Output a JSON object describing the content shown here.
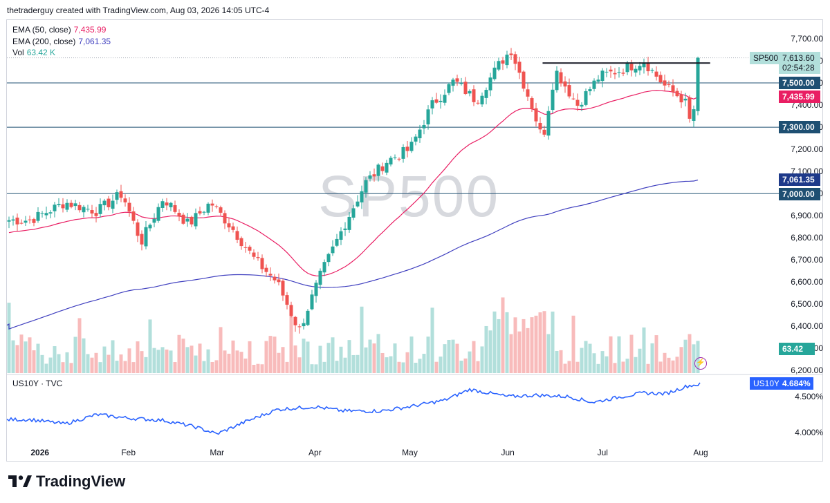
{
  "header": {
    "credit": "thetraderguy created with TradingView.com, Aug 03, 2026 14:05 UTC-4"
  },
  "main_pane": {
    "symbol": "SP500",
    "last_price": "7,613.60",
    "countdown": "02:54:28",
    "legend": [
      {
        "label": "EMA (50, close)",
        "value": "7,435.99",
        "color": "#e91e63"
      },
      {
        "label": "EMA (200, close)",
        "value": "7,061.35",
        "color": "#3f3fbf"
      },
      {
        "label": "Vol",
        "value": "63.42 K",
        "color": "#26a69a"
      }
    ],
    "price_axis_labels": [
      "7,700.00",
      "7,600.00",
      "7,500.00",
      "7,400.00",
      "7,300.00",
      "7,200.00",
      "7,100.00",
      "7,000.00",
      "6,900.00",
      "6,800.00",
      "6,700.00",
      "6,600.00",
      "6,500.00",
      "6,400.00",
      "6,300.00",
      "6,200.00"
    ],
    "horizontal_levels": [
      {
        "value": "7,500.00",
        "color": "#1e4f72"
      },
      {
        "value": "7,300.00",
        "color": "#1e4f72"
      },
      {
        "value": "7,000.00",
        "color": "#1e4f72"
      }
    ],
    "ema50_tag": "7,435.99",
    "ema200_tag": "7,061.35",
    "volume_tag": "63.42 K",
    "watermark": "SP500"
  },
  "lower_pane": {
    "legend": "US10Y · TVC",
    "symbol": "US10Y",
    "last_value": "4.684%",
    "axis_labels": [
      "4.500%",
      "4.000%"
    ]
  },
  "time_axis": [
    "2026",
    "Feb",
    "Mar",
    "Apr",
    "May",
    "Jun",
    "Jul",
    "Aug"
  ],
  "footer": {
    "brand": "TradingView"
  },
  "colors": {
    "up": "#26a69a",
    "down": "#ef5350",
    "vol_up": "#b2dfdb",
    "vol_down": "#f8bbbb",
    "ema50": "#e91e63",
    "ema200": "#3f3fbf",
    "us10y": "#2962ff",
    "level": "#1e4f72",
    "resistance": "#131722"
  },
  "chart_data": [
    {
      "type": "candlestick",
      "title": "SP500",
      "y_unit": "price",
      "ylim": [
        6160,
        7760
      ],
      "anchors": [
        {
          "date": "2026-01-01",
          "close": 6880
        },
        {
          "date": "2026-01-12",
          "close": 6960
        },
        {
          "date": "2026-01-22",
          "close": 6920
        },
        {
          "date": "2026-01-30",
          "close": 7000
        },
        {
          "date": "2026-02-05",
          "close": 6780
        },
        {
          "date": "2026-02-12",
          "close": 6980
        },
        {
          "date": "2026-02-20",
          "close": 6860
        },
        {
          "date": "2026-02-27",
          "close": 6960
        },
        {
          "date": "2026-03-06",
          "close": 6840
        },
        {
          "date": "2026-03-13",
          "close": 6700
        },
        {
          "date": "2026-03-20",
          "close": 6600
        },
        {
          "date": "2026-03-27",
          "close": 6380
        },
        {
          "date": "2026-04-03",
          "close": 6640
        },
        {
          "date": "2026-04-10",
          "close": 6850
        },
        {
          "date": "2026-04-17",
          "close": 7050
        },
        {
          "date": "2026-04-24",
          "close": 7150
        },
        {
          "date": "2026-05-01",
          "close": 7200
        },
        {
          "date": "2026-05-08",
          "close": 7400
        },
        {
          "date": "2026-05-15",
          "close": 7510
        },
        {
          "date": "2026-05-22",
          "close": 7420
        },
        {
          "date": "2026-05-29",
          "close": 7580
        },
        {
          "date": "2026-06-02",
          "close": 7650
        },
        {
          "date": "2026-06-09",
          "close": 7380
        },
        {
          "date": "2026-06-12",
          "close": 7240
        },
        {
          "date": "2026-06-16",
          "close": 7560
        },
        {
          "date": "2026-06-23",
          "close": 7400
        },
        {
          "date": "2026-06-30",
          "close": 7530
        },
        {
          "date": "2026-07-07",
          "close": 7560
        },
        {
          "date": "2026-07-14",
          "close": 7600
        },
        {
          "date": "2026-07-21",
          "close": 7480
        },
        {
          "date": "2026-07-27",
          "close": 7420
        },
        {
          "date": "2026-07-29",
          "close": 7300
        },
        {
          "date": "2026-07-31",
          "close": 7500
        },
        {
          "date": "2026-08-03",
          "close": 7613.6
        }
      ],
      "resistance": {
        "value": 7590,
        "from": "2026-06-12",
        "to": "2026-08-04"
      },
      "ema50_end": 7435.99,
      "ema200_end": 7061.35,
      "volume_last": "63.42 K"
    },
    {
      "type": "line",
      "title": "US10Y",
      "y_unit": "percent",
      "ylim": [
        3.85,
        4.75
      ],
      "points": [
        {
          "date": "2026-01-01",
          "value": 4.18
        },
        {
          "date": "2026-01-12",
          "value": 4.12
        },
        {
          "date": "2026-01-22",
          "value": 4.25
        },
        {
          "date": "2026-02-01",
          "value": 4.2
        },
        {
          "date": "2026-02-12",
          "value": 4.17
        },
        {
          "date": "2026-02-22",
          "value": 4.08
        },
        {
          "date": "2026-03-01",
          "value": 3.98
        },
        {
          "date": "2026-03-10",
          "value": 4.15
        },
        {
          "date": "2026-03-20",
          "value": 4.32
        },
        {
          "date": "2026-04-01",
          "value": 4.36
        },
        {
          "date": "2026-04-10",
          "value": 4.3
        },
        {
          "date": "2026-04-22",
          "value": 4.3
        },
        {
          "date": "2026-05-01",
          "value": 4.36
        },
        {
          "date": "2026-05-12",
          "value": 4.45
        },
        {
          "date": "2026-05-20",
          "value": 4.6
        },
        {
          "date": "2026-06-01",
          "value": 4.5
        },
        {
          "date": "2026-06-10",
          "value": 4.52
        },
        {
          "date": "2026-06-20",
          "value": 4.5
        },
        {
          "date": "2026-06-28",
          "value": 4.42
        },
        {
          "date": "2026-07-07",
          "value": 4.5
        },
        {
          "date": "2026-07-14",
          "value": 4.55
        },
        {
          "date": "2026-07-21",
          "value": 4.54
        },
        {
          "date": "2026-07-28",
          "value": 4.65
        },
        {
          "date": "2026-08-03",
          "value": 4.684
        }
      ]
    }
  ]
}
